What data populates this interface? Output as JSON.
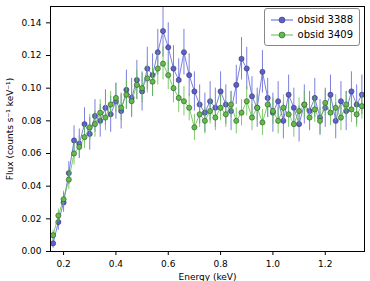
{
  "chart_data": {
    "type": "line",
    "x_label": "Energy (keV)",
    "y_label": "Flux (counts s⁻¹ keV⁻¹)",
    "xlim": [
      0.15,
      1.35
    ],
    "ylim": [
      0,
      0.15
    ],
    "xticks": [
      0.2,
      0.4,
      0.6,
      0.8,
      {
        "value": 1,
        "label": "1.0"
      },
      1.2
    ],
    "yticks": [
      {
        "value": 0,
        "label": "0.00"
      },
      {
        "value": 0.02,
        "label": "0.02"
      },
      {
        "value": 0.04,
        "label": "0.04"
      },
      {
        "value": 0.06,
        "label": "0.06"
      },
      {
        "value": 0.08,
        "label": "0.08"
      },
      {
        "value": 0.1,
        "label": "0.10"
      },
      {
        "value": 0.12,
        "label": "0.12"
      },
      {
        "value": 0.14,
        "label": "0.14"
      }
    ],
    "legend": "upper right",
    "x": [
      0.16,
      0.18,
      0.2,
      0.22,
      0.24,
      0.26,
      0.28,
      0.3,
      0.32,
      0.34,
      0.36,
      0.38,
      0.4,
      0.42,
      0.44,
      0.46,
      0.48,
      0.5,
      0.52,
      0.54,
      0.56,
      0.58,
      0.6,
      0.62,
      0.64,
      0.66,
      0.68,
      0.7,
      0.72,
      0.74,
      0.76,
      0.78,
      0.8,
      0.82,
      0.84,
      0.86,
      0.88,
      0.9,
      0.92,
      0.94,
      0.96,
      0.98,
      1.0,
      1.02,
      1.04,
      1.06,
      1.08,
      1.1,
      1.12,
      1.14,
      1.16,
      1.18,
      1.2,
      1.22,
      1.24,
      1.26,
      1.28,
      1.3,
      1.32,
      1.34
    ],
    "series": [
      {
        "name": "obsid 3388",
        "color": "#5a5fd8",
        "marker": "circle",
        "line_style": "solid",
        "values": [
          0.005,
          0.018,
          0.03,
          0.048,
          0.068,
          0.066,
          0.078,
          0.072,
          0.083,
          0.08,
          0.088,
          0.084,
          0.092,
          0.086,
          0.099,
          0.094,
          0.105,
          0.098,
          0.112,
          0.108,
          0.122,
          0.135,
          0.125,
          0.112,
          0.105,
          0.122,
          0.108,
          0.098,
          0.09,
          0.085,
          0.092,
          0.088,
          0.098,
          0.09,
          0.086,
          0.102,
          0.118,
          0.112,
          0.095,
          0.088,
          0.11,
          0.094,
          0.085,
          0.092,
          0.08,
          0.096,
          0.088,
          0.078,
          0.09,
          0.086,
          0.094,
          0.082,
          0.088,
          0.096,
          0.08,
          0.092,
          0.086,
          0.098,
          0.09,
          0.096
        ],
        "errors": [
          0.003,
          0.005,
          0.006,
          0.007,
          0.009,
          0.009,
          0.01,
          0.01,
          0.01,
          0.01,
          0.011,
          0.011,
          0.011,
          0.011,
          0.012,
          0.012,
          0.012,
          0.012,
          0.013,
          0.013,
          0.014,
          0.016,
          0.015,
          0.014,
          0.013,
          0.014,
          0.013,
          0.012,
          0.012,
          0.012,
          0.012,
          0.012,
          0.012,
          0.012,
          0.012,
          0.012,
          0.013,
          0.013,
          0.012,
          0.012,
          0.013,
          0.012,
          0.012,
          0.012,
          0.011,
          0.012,
          0.012,
          0.011,
          0.012,
          0.012,
          0.012,
          0.011,
          0.012,
          0.012,
          0.011,
          0.012,
          0.012,
          0.012,
          0.012,
          0.012
        ]
      },
      {
        "name": "obsid 3409",
        "color": "#5cbf45",
        "marker": "circle",
        "line_style": "solid",
        "values": [
          0.01,
          0.022,
          0.032,
          0.044,
          0.06,
          0.064,
          0.07,
          0.076,
          0.078,
          0.085,
          0.082,
          0.09,
          0.094,
          0.088,
          0.096,
          0.092,
          0.102,
          0.1,
          0.106,
          0.104,
          0.112,
          0.115,
          0.108,
          0.1,
          0.094,
          0.092,
          0.088,
          0.076,
          0.084,
          0.08,
          0.086,
          0.082,
          0.088,
          0.084,
          0.09,
          0.08,
          0.085,
          0.092,
          0.082,
          0.088,
          0.079,
          0.09,
          0.086,
          0.08,
          0.088,
          0.084,
          0.078,
          0.086,
          0.09,
          0.082,
          0.087,
          0.08,
          0.091,
          0.085,
          0.088,
          0.082,
          0.09,
          0.087,
          0.084,
          0.089
        ],
        "errors": [
          0.003,
          0.004,
          0.005,
          0.006,
          0.007,
          0.007,
          0.007,
          0.008,
          0.008,
          0.008,
          0.008,
          0.008,
          0.009,
          0.008,
          0.009,
          0.009,
          0.009,
          0.009,
          0.009,
          0.009,
          0.01,
          0.01,
          0.009,
          0.009,
          0.009,
          0.009,
          0.008,
          0.008,
          0.008,
          0.008,
          0.008,
          0.008,
          0.008,
          0.008,
          0.008,
          0.008,
          0.008,
          0.009,
          0.008,
          0.008,
          0.008,
          0.008,
          0.008,
          0.008,
          0.008,
          0.008,
          0.008,
          0.008,
          0.008,
          0.008,
          0.008,
          0.008,
          0.008,
          0.008,
          0.008,
          0.008,
          0.008,
          0.008,
          0.008,
          0.008
        ]
      }
    ]
  }
}
